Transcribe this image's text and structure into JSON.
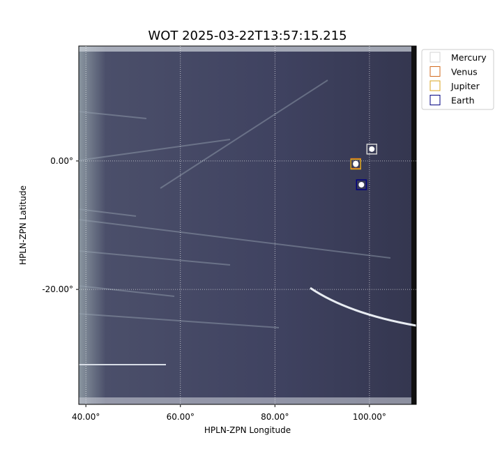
{
  "chart_data": {
    "type": "image",
    "title": "WOT 2025-03-22T13:57:15.215",
    "xlabel": "HPLN-ZPN Longitude",
    "ylabel": "HPLN-ZPN Latitude",
    "xlim": [
      38.5,
      109.9
    ],
    "ylim": [
      -37.9,
      17.9
    ],
    "xticks": [
      {
        "value": 40,
        "label": "40.00°"
      },
      {
        "value": 60,
        "label": "60.00°"
      },
      {
        "value": 80,
        "label": "80.00°"
      },
      {
        "value": 100,
        "label": "100.00°"
      }
    ],
    "yticks": [
      {
        "value": 0,
        "label": "0.00°"
      },
      {
        "value": -20,
        "label": "-20.00°"
      }
    ],
    "grid": true,
    "legend": "upper right outside",
    "series": [
      {
        "name": "Mercury",
        "color": "#d3d3d3",
        "x": [
          100.5
        ],
        "values": [
          1.85
        ]
      },
      {
        "name": "Venus",
        "color": "#d2691e",
        "x": [
          97.1
        ],
        "values": [
          -0.4
        ]
      },
      {
        "name": "Jupiter",
        "color": "#daa520",
        "x": [
          97.1
        ],
        "values": [
          -0.5
        ]
      },
      {
        "name": "Earth",
        "color": "#000080",
        "x": [
          98.3
        ],
        "values": [
          -3.7
        ]
      }
    ]
  }
}
